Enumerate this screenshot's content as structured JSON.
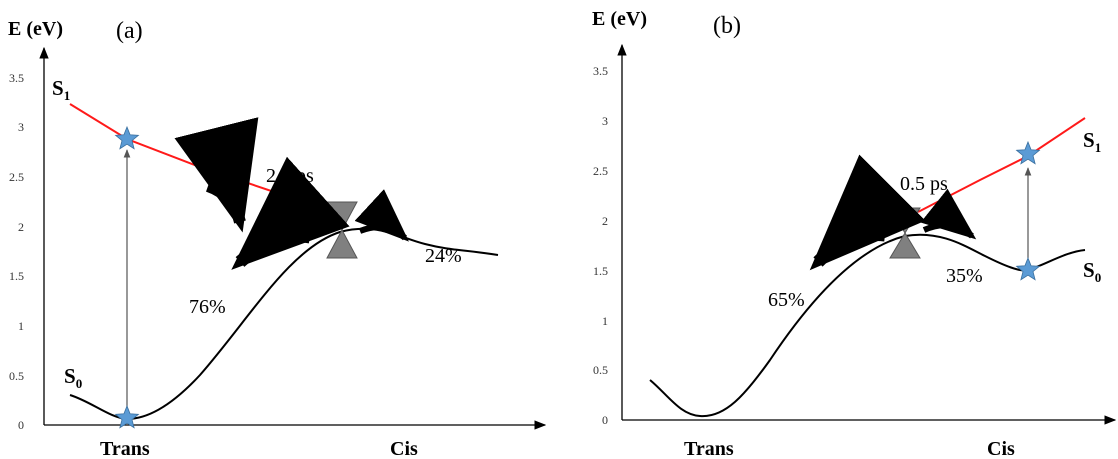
{
  "panels": [
    {
      "label": "(a)",
      "y_axis_label": "E (eV)",
      "y_ticks": [
        "0",
        "0.5",
        "1",
        "1.5",
        "2",
        "2.5",
        "3",
        "3.5"
      ],
      "x_categories": [
        "Trans",
        "Cis"
      ],
      "state_upper": "S",
      "state_upper_sub": "1",
      "state_lower": "S",
      "state_lower_sub": "0",
      "time_label": "2.8 ps",
      "left_branch": "76%",
      "right_branch": "24%"
    },
    {
      "label": "(b)",
      "y_axis_label": "E (eV)",
      "y_ticks": [
        "0",
        "0.5",
        "1",
        "1.5",
        "2",
        "2.5",
        "3",
        "3.5"
      ],
      "x_categories": [
        "Trans",
        "Cis"
      ],
      "state_upper": "S",
      "state_upper_sub": "1",
      "state_lower": "S",
      "state_lower_sub": "0",
      "time_label": "0.5 ps",
      "left_branch": "65%",
      "right_branch": "35%"
    }
  ],
  "colors": {
    "s1_curve": "#ff1a1a",
    "s0_curve": "#000000",
    "star": "#5b9bd5",
    "conical_intersection": "#808080"
  }
}
